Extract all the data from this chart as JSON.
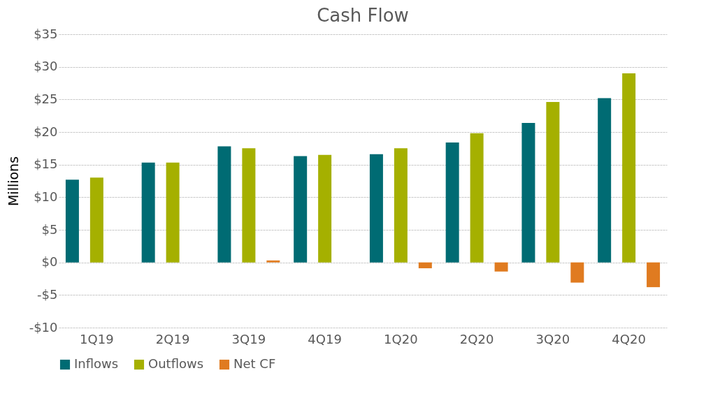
{
  "chart_data": {
    "type": "bar",
    "title": "Cash Flow",
    "ylabel": "Millions",
    "categories": [
      "1Q19",
      "2Q19",
      "3Q19",
      "4Q19",
      "1Q20",
      "2Q20",
      "3Q20",
      "4Q20"
    ],
    "series": [
      {
        "name": "Inflows",
        "color": "#006b73",
        "values": [
          12.7,
          15.3,
          17.8,
          16.3,
          16.6,
          18.4,
          21.4,
          25.2
        ]
      },
      {
        "name": "Outflows",
        "color": "#a5b000",
        "values": [
          13.0,
          15.3,
          17.5,
          16.5,
          17.5,
          19.8,
          24.6,
          29.0
        ]
      },
      {
        "name": "Net CF",
        "color": "#e07b20",
        "values": [
          0.0,
          0.0,
          0.3,
          0.0,
          -0.9,
          -1.4,
          -3.1,
          -3.8
        ]
      }
    ],
    "ylim": [
      -10,
      35
    ],
    "yticks": [
      {
        "value": -10,
        "label": "-$10"
      },
      {
        "value": -5,
        "label": "-$5"
      },
      {
        "value": 0,
        "label": "$0"
      },
      {
        "value": 5,
        "label": "$5"
      },
      {
        "value": 10,
        "label": "$10"
      },
      {
        "value": 15,
        "label": "$15"
      },
      {
        "value": 20,
        "label": "$20"
      },
      {
        "value": 25,
        "label": "$25"
      },
      {
        "value": 30,
        "label": "$30"
      },
      {
        "value": 35,
        "label": "$35"
      }
    ],
    "grid": "y",
    "legend": "bottom"
  }
}
